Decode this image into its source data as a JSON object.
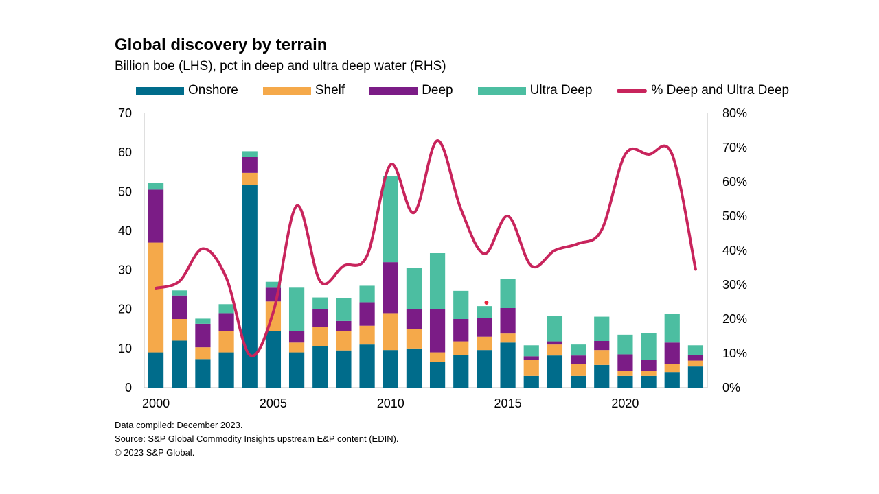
{
  "chart_data": {
    "type": "bar",
    "title": "Global discovery by terrain",
    "subtitle": "Billion boe (LHS), pct in deep and ultra deep water (RHS)",
    "x": [
      2000,
      2001,
      2002,
      2003,
      2004,
      2005,
      2006,
      2007,
      2008,
      2009,
      2010,
      2011,
      2012,
      2013,
      2014,
      2015,
      2016,
      2017,
      2018,
      2019,
      2020,
      2021,
      2022,
      2023
    ],
    "x_tick_labels": [
      "2000",
      "2005",
      "2010",
      "2015",
      "2020"
    ],
    "ylim_left": [
      0,
      70
    ],
    "y_ticks_left": [
      "70",
      "60",
      "50",
      "40",
      "30",
      "20",
      "10",
      "0"
    ],
    "ylim_right": [
      0,
      80
    ],
    "y_ticks_right": [
      "80%",
      "70%",
      "60%",
      "50%",
      "40%",
      "30%",
      "20%",
      "10%",
      "0%"
    ],
    "stacked": true,
    "series": [
      {
        "name": "Onshore",
        "color": "#006C8B",
        "axis": "left",
        "values": [
          9,
          12,
          7.3,
          9,
          51.8,
          14.5,
          9,
          10.5,
          9.5,
          11,
          9.6,
          10,
          6.5,
          8.3,
          9.6,
          11.5,
          3,
          8.2,
          3,
          5.8,
          3,
          3,
          4,
          5.4
        ]
      },
      {
        "name": "Shelf",
        "color": "#F5A94A",
        "axis": "left",
        "values": [
          28,
          5.5,
          3,
          5.5,
          3,
          7.5,
          2.5,
          5,
          5,
          4.8,
          9.4,
          5,
          2.5,
          3.5,
          3.4,
          2.3,
          4,
          2.8,
          3,
          3.8,
          1.3,
          1.3,
          2,
          1.5
        ]
      },
      {
        "name": "Deep",
        "color": "#7B1C86",
        "axis": "left",
        "values": [
          13.5,
          6,
          6,
          4.5,
          4,
          3.5,
          3,
          4.5,
          2.5,
          6,
          13,
          5,
          11,
          5.7,
          4.8,
          6.5,
          1,
          0.8,
          2.2,
          2.3,
          4.2,
          2.8,
          5.5,
          1.4
        ]
      },
      {
        "name": "Ultra Deep",
        "color": "#4CBEA1",
        "axis": "left",
        "values": [
          1.7,
          1.3,
          1.3,
          2.3,
          1.5,
          1.5,
          11,
          3,
          5.8,
          4.2,
          22,
          10.6,
          14.3,
          7.2,
          3,
          7.5,
          2.8,
          6.5,
          2.8,
          6.2,
          5,
          6.8,
          7.4,
          2.5
        ]
      },
      {
        "name": "% Deep and Ultra Deep",
        "color": "#C8245C",
        "axis": "right",
        "type": "line",
        "values": [
          29,
          31,
          40.5,
          32,
          9.5,
          22,
          53,
          31,
          35.5,
          38.5,
          65,
          51,
          72,
          52,
          39,
          50,
          35.5,
          40,
          42,
          46,
          68,
          68,
          68,
          34.5
        ]
      }
    ],
    "annotation_point": {
      "x": 2014,
      "y": 21.7,
      "color": "#E8263C"
    },
    "footer": [
      "Data compiled: December 2023.",
      "Source: S&P Global Commodity Insights upstream E&P content (EDIN).",
      "© 2023 S&P Global."
    ]
  }
}
